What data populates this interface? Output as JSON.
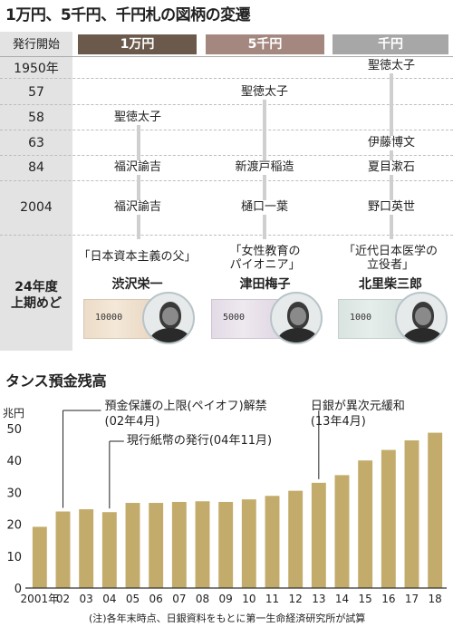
{
  "title": "1万円、5千円、千円札の図柄の変遷",
  "table": {
    "year_header": "発行開始",
    "columns": [
      {
        "label": "1万円",
        "color": "#6b5a4b"
      },
      {
        "label": "5千円",
        "color": "#a48880"
      },
      {
        "label": "千円",
        "color": "#a7a7a7"
      }
    ],
    "years": [
      "1950年",
      "57",
      "58",
      "63",
      "84",
      "2004"
    ],
    "cells": {
      "y1950_c3": "聖徳太子",
      "y57_c2": "聖徳太子",
      "y58_c1": "聖徳太子",
      "y63_c3": "伊藤博文",
      "y84_c1": "福沢諭吉",
      "y84_c2": "新渡戸稲造",
      "y84_c3": "夏目漱石",
      "y2004_c1": "福沢諭吉",
      "y2004_c2": "樋口一葉",
      "y2004_c3": "野口英世"
    },
    "future": {
      "period_line1": "24年度",
      "period_line2": "上期めど",
      "items": [
        {
          "slogan_line1": "「日本資本主義の父」",
          "slogan_line2": "",
          "name": "渋沢栄一",
          "note_value": "10000"
        },
        {
          "slogan_line1": "「女性教育の",
          "slogan_line2": "パイオニア」",
          "name": "津田梅子",
          "note_value": "5000"
        },
        {
          "slogan_line1": "「近代日本医学の",
          "slogan_line2": "立役者」",
          "name": "北里柴三郎",
          "note_value": "1000"
        }
      ]
    }
  },
  "chart_title": "タンス預金残高",
  "chart_data": {
    "type": "bar",
    "ylabel": "兆円",
    "ylim": [
      0,
      50
    ],
    "yticks": [
      0,
      10,
      20,
      30,
      40,
      50
    ],
    "categories": [
      "2001年",
      "02",
      "03",
      "04",
      "05",
      "06",
      "07",
      "08",
      "09",
      "10",
      "11",
      "12",
      "13",
      "14",
      "15",
      "16",
      "17",
      "18"
    ],
    "values": [
      19.2,
      24.0,
      24.7,
      23.8,
      26.7,
      26.7,
      27.0,
      27.2,
      27.0,
      27.8,
      28.9,
      30.5,
      33.0,
      35.4,
      40.0,
      43.3,
      46.3,
      48.7
    ],
    "bar_color": "#c3ac6b",
    "annotations": [
      {
        "category": "02",
        "line1": "預金保護の上限(ペイオフ)解禁",
        "line2": "(02年4月)"
      },
      {
        "category": "04",
        "line1": "現行紙幣の発行(04年11月)",
        "line2": ""
      },
      {
        "category": "13",
        "line1": "日銀が異次元緩和",
        "line2": "(13年4月)"
      }
    ],
    "grid": false,
    "legend": "none"
  },
  "footnote": "(注)各年末時点、日銀資料をもとに第一生命経済研究所が試算"
}
